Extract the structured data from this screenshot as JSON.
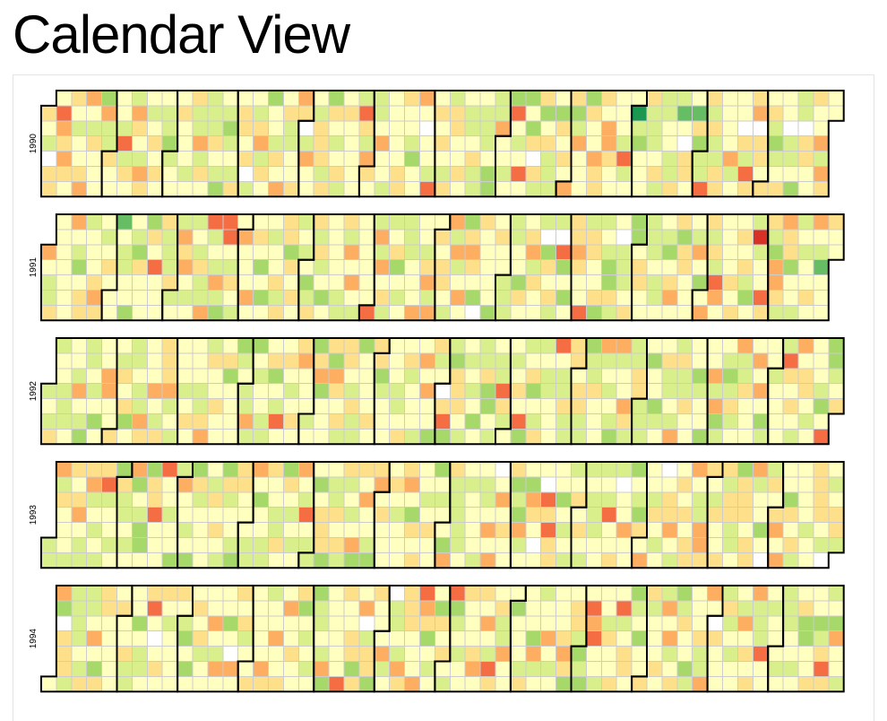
{
  "page": {
    "title": "Calendar View"
  },
  "colors": {
    "scale": [
      "#d73027",
      "#f46d43",
      "#fdae61",
      "#fee08b",
      "#ffffbf",
      "#d9ef8b",
      "#a6d96a",
      "#66bd63",
      "#1a9850"
    ],
    "empty": "#ffffff",
    "grid": "#cccccc",
    "month_outline": "#000000"
  },
  "chart_data": {
    "type": "heatmap",
    "subtype": "calendar",
    "layout": "one row per year, columns = weeks, rows = weekdays (Sun–Sat), thick outlines mark month boundaries",
    "years": [
      {
        "label": "1990",
        "year": 1990
      },
      {
        "label": "1991",
        "year": 1991
      },
      {
        "label": "1992",
        "year": 1992
      },
      {
        "label": "1993",
        "year": 1993
      },
      {
        "label": "1994",
        "year": 1994
      }
    ],
    "value_levels": 9,
    "value_note": "Per-day values shown as 9-level diverging colour scale (0 = red, 8 = green); daily values are not labelled in the original.",
    "highlights": [
      {
        "date": "1990-01-08",
        "level": 1
      },
      {
        "date": "1990-08-10",
        "level": 1
      },
      {
        "date": "1990-09-27",
        "level": 1
      },
      {
        "date": "1990-10-01",
        "level": 8
      },
      {
        "date": "1990-10-22",
        "level": 7
      },
      {
        "date": "1990-10-29",
        "level": 7
      },
      {
        "date": "1991-01-01",
        "level": 2
      },
      {
        "date": "1991-02-03",
        "level": 7
      },
      {
        "date": "1991-05-21",
        "level": 2
      },
      {
        "date": "1991-07-07",
        "level": 2
      },
      {
        "date": "1991-11-25",
        "level": 0
      },
      {
        "date": "1991-12-25",
        "level": 7
      },
      {
        "date": "1992-01-28",
        "level": 2
      },
      {
        "date": "1992-05-05",
        "level": 2
      },
      {
        "date": "1993-02-17",
        "level": 1
      },
      {
        "date": "1993-04-04",
        "level": 2
      },
      {
        "date": "1994-02-14",
        "level": 1
      },
      {
        "date": "1994-06-20",
        "level": 2
      },
      {
        "date": "1994-11-24",
        "level": 1
      }
    ]
  }
}
